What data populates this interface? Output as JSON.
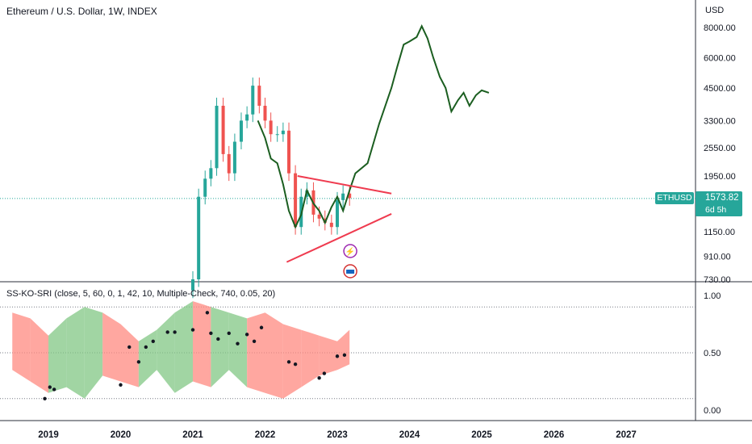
{
  "title": "Ethereum / U.S. Dollar, 1W, INDEX",
  "currency": "USD",
  "symbol": "ETHUSD",
  "last_price": "1573.82",
  "countdown": "6d 5h",
  "indicator_title": "SS-KO-SRI (close, 5, 60, 0, 1, 42, 10, Multiple-Check, 740, 0.05, 20)",
  "colors": {
    "up": "#26a69a",
    "down": "#ef5350",
    "path": "#1b5e20",
    "wedge": "#ef3b4f",
    "dotted": "#26a69a"
  },
  "chart_data": [
    {
      "type": "line",
      "title": "Ethereum / U.S. Dollar, 1W, INDEX",
      "y_scale": "log",
      "y_ticks": [
        "8000.00",
        "6000.00",
        "4500.00",
        "3300.00",
        "2550.00",
        "1950.00",
        "1150.00",
        "910.00",
        "730.00"
      ],
      "x_ticks": [
        "2019",
        "2020",
        "2021",
        "2022",
        "2023",
        "2024",
        "2025",
        "2026",
        "2027"
      ],
      "candles_x": [
        2021.0,
        2021.08,
        2021.17,
        2021.25,
        2021.33,
        2021.42,
        2021.5,
        2021.58,
        2021.67,
        2021.75,
        2021.83,
        2021.92,
        2022.0,
        2022.08,
        2022.17,
        2022.25,
        2022.33,
        2022.42,
        2022.5,
        2022.58,
        2022.67,
        2022.75,
        2022.83,
        2022.92,
        2023.0,
        2023.08,
        2023.17
      ],
      "candles_close": [
        730,
        1600,
        1900,
        2100,
        3800,
        2400,
        2000,
        2700,
        3300,
        3500,
        4600,
        3800,
        3300,
        2900,
        2900,
        3000,
        2000,
        1200,
        1600,
        1700,
        1350,
        1300,
        1250,
        1200,
        1550,
        1650,
        1580
      ],
      "projection": {
        "x": [
          2021.9,
          2022.0,
          2022.08,
          2022.17,
          2022.25,
          2022.33,
          2022.42,
          2022.5,
          2022.58,
          2022.67,
          2022.75,
          2022.83,
          2022.92,
          2023.0,
          2023.08,
          2023.17,
          2023.25,
          2023.42,
          2023.58,
          2023.75,
          2023.83,
          2023.92,
          2024.0,
          2024.1,
          2024.17,
          2024.25,
          2024.33,
          2024.42,
          2024.5,
          2024.58,
          2024.67,
          2024.75,
          2024.83,
          2024.92,
          2025.0,
          2025.1
        ],
        "y": [
          3300,
          2800,
          2300,
          2200,
          1800,
          1400,
          1200,
          1350,
          1700,
          1500,
          1400,
          1250,
          1450,
          1600,
          1400,
          1700,
          2000,
          2200,
          3200,
          4500,
          5500,
          6800,
          7000,
          7300,
          8100,
          7200,
          6000,
          5000,
          4500,
          3600,
          4000,
          4300,
          3800,
          4200,
          4400,
          4300
        ]
      },
      "wedge": {
        "upper": [
          [
            2022.45,
            1950
          ],
          [
            2023.75,
            1650
          ]
        ],
        "lower": [
          [
            2022.3,
            860
          ],
          [
            2023.75,
            1360
          ]
        ]
      },
      "last_price": 1573.82
    },
    {
      "type": "area",
      "title": "SS-KO-SRI (close, 5, 60, 0, 1, 42, 10, Multiple-Check, 740, 0.05, 20)",
      "y_ticks": [
        "1.00",
        "0.50",
        "0.00"
      ],
      "levels": [
        0.9,
        0.5,
        0.1
      ],
      "x": [
        2018.5,
        2018.75,
        2019.0,
        2019.25,
        2019.5,
        2019.75,
        2020.0,
        2020.25,
        2020.5,
        2020.75,
        2021.0,
        2021.25,
        2021.5,
        2021.75,
        2022.0,
        2022.25,
        2022.5,
        2022.75,
        2023.0,
        2023.17
      ],
      "upper": [
        0.85,
        0.8,
        0.65,
        0.8,
        0.9,
        0.85,
        0.75,
        0.6,
        0.7,
        0.85,
        0.95,
        0.9,
        0.85,
        0.8,
        0.85,
        0.75,
        0.7,
        0.65,
        0.6,
        0.7
      ],
      "lower": [
        0.35,
        0.25,
        0.15,
        0.2,
        0.1,
        0.3,
        0.25,
        0.2,
        0.35,
        0.15,
        0.25,
        0.2,
        0.35,
        0.2,
        0.15,
        0.1,
        0.2,
        0.3,
        0.35,
        0.4
      ],
      "state": [
        "down",
        "down",
        "up",
        "up",
        "up",
        "down",
        "down",
        "up",
        "up",
        "up",
        "down",
        "up",
        "up",
        "down",
        "down",
        "down",
        "down",
        "down",
        "down",
        "up"
      ],
      "dots_x": [
        2018.95,
        2019.02,
        2019.08,
        2020.0,
        2020.12,
        2020.25,
        2020.35,
        2020.45,
        2020.65,
        2020.75,
        2021.0,
        2021.2,
        2021.25,
        2021.35,
        2021.5,
        2021.62,
        2021.75,
        2021.85,
        2021.95,
        2022.33,
        2022.42,
        2022.75,
        2022.82,
        2023.0,
        2023.1
      ],
      "dots_y": [
        0.1,
        0.2,
        0.18,
        0.22,
        0.55,
        0.42,
        0.55,
        0.6,
        0.68,
        0.68,
        0.7,
        0.85,
        0.67,
        0.62,
        0.67,
        0.58,
        0.66,
        0.6,
        0.72,
        0.42,
        0.4,
        0.28,
        0.32,
        0.47,
        0.48
      ]
    }
  ]
}
